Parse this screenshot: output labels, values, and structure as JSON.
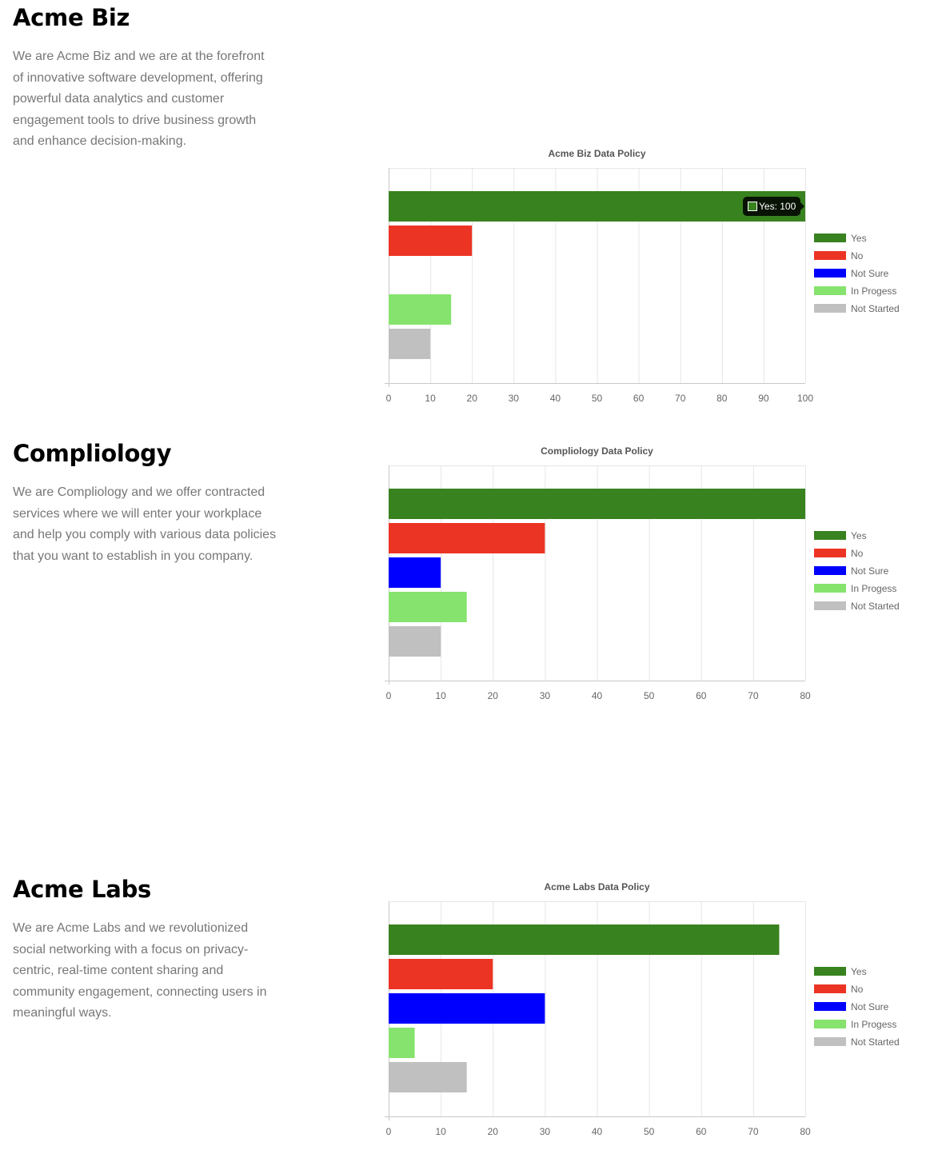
{
  "companies": [
    {
      "name": "Acme Biz",
      "description": "We are Acme Biz and we are at the forefront of innovative software development, offering powerful data analytics and customer engagement tools to drive business growth and enhance decision-making."
    },
    {
      "name": "Compliology",
      "description": "We are Compliology and we offer contracted services where we will enter your workplace and help you comply with various data policies that you want to establish in you company."
    },
    {
      "name": "Acme Labs",
      "description": "We are Acme Labs and we revolutionized social networking with a focus on privacy-centric, real-time content sharing and community engagement, connecting users in meaningful ways."
    }
  ],
  "colors": {
    "Yes": "#38821f",
    "No": "#ec3424",
    "Not Sure": "#0000ff",
    "In Progess": "#86e36d",
    "Not Started": "#c0c0c0"
  },
  "chart_data": [
    {
      "type": "bar",
      "orientation": "horizontal",
      "title": "Acme Biz Data Policy",
      "categories": [
        "Yes",
        "No",
        "Not Sure",
        "In Progess",
        "Not Started"
      ],
      "values": [
        100,
        20,
        0,
        15,
        10
      ],
      "xlim": [
        0,
        100
      ],
      "xticks": [
        0,
        10,
        20,
        30,
        40,
        50,
        60,
        70,
        80,
        90,
        100
      ],
      "grid": true,
      "legend": "right",
      "tooltip": {
        "text": "Yes: 100",
        "category": "Yes"
      }
    },
    {
      "type": "bar",
      "orientation": "horizontal",
      "title": "Compliology Data Policy",
      "categories": [
        "Yes",
        "No",
        "Not Sure",
        "In Progess",
        "Not Started"
      ],
      "values": [
        80,
        30,
        10,
        15,
        10
      ],
      "xlim": [
        0,
        80
      ],
      "xticks": [
        0,
        10,
        20,
        30,
        40,
        50,
        60,
        70,
        80
      ],
      "grid": true,
      "legend": "right"
    },
    {
      "type": "bar",
      "orientation": "horizontal",
      "title": "Acme Labs Data Policy",
      "categories": [
        "Yes",
        "No",
        "Not Sure",
        "In Progess",
        "Not Started"
      ],
      "values": [
        75,
        20,
        30,
        5,
        15
      ],
      "xlim": [
        0,
        80
      ],
      "xticks": [
        0,
        10,
        20,
        30,
        40,
        50,
        60,
        70,
        80
      ],
      "grid": true,
      "legend": "right"
    }
  ]
}
